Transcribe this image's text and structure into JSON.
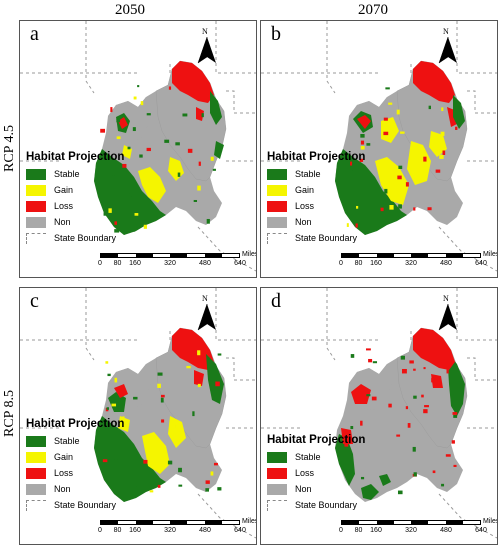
{
  "columns": [
    "2050",
    "2070"
  ],
  "rows": [
    "RCP 4.5",
    "RCP 8.5"
  ],
  "colors": {
    "stable": "#1a7a1a",
    "gain": "#f5f500",
    "loss": "#ee1111",
    "non": "#a9a9a9",
    "boundary": "#9a9a9a"
  },
  "panels": [
    {
      "letter": "a",
      "legend_title": "Habitat Projection",
      "legend": [
        {
          "label": "Stable",
          "class": "stable"
        },
        {
          "label": "Gain",
          "class": "gain"
        },
        {
          "label": "Loss",
          "class": "loss"
        },
        {
          "label": "Non",
          "class": "non"
        },
        {
          "label": "State Boundary",
          "class": "boundary"
        }
      ]
    },
    {
      "letter": "b",
      "legend_title": "Habitat Projection",
      "legend": [
        {
          "label": "Stable",
          "class": "stable"
        },
        {
          "label": "Gain",
          "class": "gain"
        },
        {
          "label": "Loss",
          "class": "loss"
        },
        {
          "label": "Non",
          "class": "non"
        },
        {
          "label": "State Boundary",
          "class": "boundary"
        }
      ]
    },
    {
      "letter": "c",
      "legend_title": "Habitat Projection",
      "legend": [
        {
          "label": "Stable",
          "class": "stable"
        },
        {
          "label": "Gain",
          "class": "gain"
        },
        {
          "label": "Loss",
          "class": "loss"
        },
        {
          "label": "Non",
          "class": "non"
        },
        {
          "label": "State Boundary",
          "class": "boundary"
        }
      ]
    },
    {
      "letter": "d",
      "legend_title": "Habitat Projection",
      "legend": [
        {
          "label": "Stable",
          "class": "stable"
        },
        {
          "label": "Loss",
          "class": "loss"
        },
        {
          "label": "Non",
          "class": "non"
        },
        {
          "label": "State Boundary",
          "class": "boundary"
        }
      ]
    }
  ],
  "north_label": "N",
  "scale": {
    "unit": "Miles",
    "ticks": [
      "0",
      "80",
      "160",
      "320",
      "480",
      "640"
    ]
  }
}
